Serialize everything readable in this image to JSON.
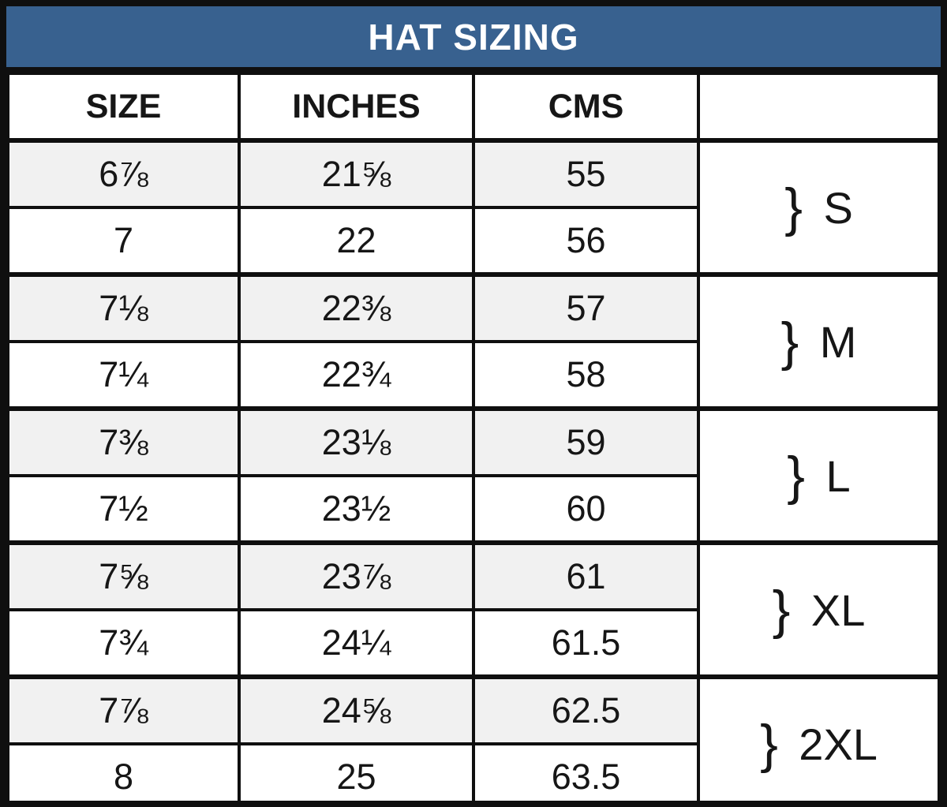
{
  "title": "HAT SIZING",
  "colors": {
    "title_bg": "#38618f",
    "title_text": "#ffffff",
    "border": "#0f0f0f",
    "row_alt_bg": "#f1f1f1",
    "row_bg": "#ffffff",
    "text": "#161616"
  },
  "chart_data": {
    "type": "table",
    "title": "HAT SIZING",
    "columns": [
      "SIZE",
      "INCHES",
      "CMS"
    ],
    "group_column_header": "",
    "brace": "}",
    "rows": [
      [
        "6⅞",
        "21⅝",
        "55"
      ],
      [
        "7",
        "22",
        "56"
      ],
      [
        "7⅛",
        "22⅜",
        "57"
      ],
      [
        "7¼",
        "22¾",
        "58"
      ],
      [
        "7⅜",
        "23⅛",
        "59"
      ],
      [
        "7½",
        "23½",
        "60"
      ],
      [
        "7⅝",
        "23⅞",
        "61"
      ],
      [
        "7¾",
        "24¼",
        "61.5"
      ],
      [
        "7⅞",
        "24⅝",
        "62.5"
      ],
      [
        "8",
        "25",
        "63.5"
      ]
    ],
    "groups": [
      {
        "label": "S",
        "rows": [
          0,
          1
        ]
      },
      {
        "label": "M",
        "rows": [
          2,
          3
        ]
      },
      {
        "label": "L",
        "rows": [
          4,
          5
        ]
      },
      {
        "label": "XL",
        "rows": [
          6,
          7
        ]
      },
      {
        "label": "2XL",
        "rows": [
          8,
          9
        ]
      }
    ]
  }
}
